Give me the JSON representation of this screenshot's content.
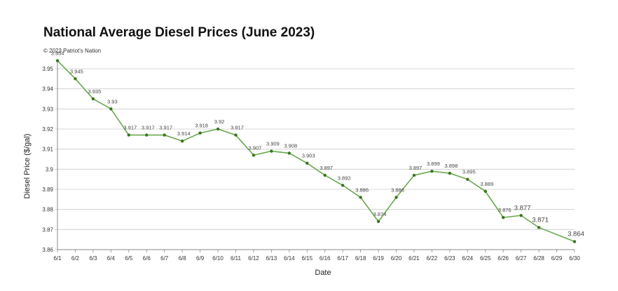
{
  "title": "National Average Diesel Prices (June 2023)",
  "copyright": "© 2023 Patriot's Nation",
  "colors": {
    "line": "#6aa84f",
    "marker": "#38761d",
    "grid": "#cccccc"
  },
  "chart_data": {
    "type": "line",
    "title": "National Average Diesel Prices (June 2023)",
    "xlabel": "Date",
    "ylabel": "Diesel Price ($/gal)",
    "ylim": [
      3.86,
      3.95
    ],
    "yticks": [
      "3.86",
      "3.87",
      "3.88",
      "3.89",
      "3.9",
      "3.91",
      "3.92",
      "3.93",
      "3.94",
      "3.95"
    ],
    "grid": true,
    "categories": [
      "6/1",
      "6/2",
      "6/3",
      "6/4",
      "6/5",
      "6/6",
      "6/7",
      "6/8",
      "6/9",
      "6/10",
      "6/11",
      "6/12",
      "6/13",
      "6/14",
      "6/15",
      "6/16",
      "6/17",
      "6/18",
      "6/19",
      "6/20",
      "6/21",
      "6/22",
      "6/23",
      "6/24",
      "6/25",
      "6/26",
      "6/27",
      "6/28",
      "6/29",
      "6/30"
    ],
    "series": [
      {
        "values": [
          3.954,
          3.945,
          3.935,
          3.93,
          3.917,
          3.917,
          3.917,
          3.914,
          3.918,
          3.92,
          3.917,
          3.907,
          3.909,
          3.908,
          3.903,
          3.897,
          3.892,
          3.886,
          3.874,
          3.886,
          3.897,
          3.899,
          3.898,
          3.895,
          3.889,
          3.876,
          3.877,
          3.871,
          null,
          3.864
        ],
        "labels": [
          "3.954",
          "3.945",
          "3.935",
          "3.93",
          "3.917",
          "3.917",
          "3.917",
          "3.914",
          "3.918",
          "3.92",
          "3.917",
          "3.907",
          "3.909",
          "3.908",
          "3.903",
          "3.897",
          "3.892",
          "3.886",
          "3.874",
          "3.886",
          "3.897",
          "3.899",
          "3.898",
          "3.895",
          "3.889",
          "3.876",
          "3.877",
          "3.871",
          "",
          "3.864"
        ]
      }
    ]
  }
}
